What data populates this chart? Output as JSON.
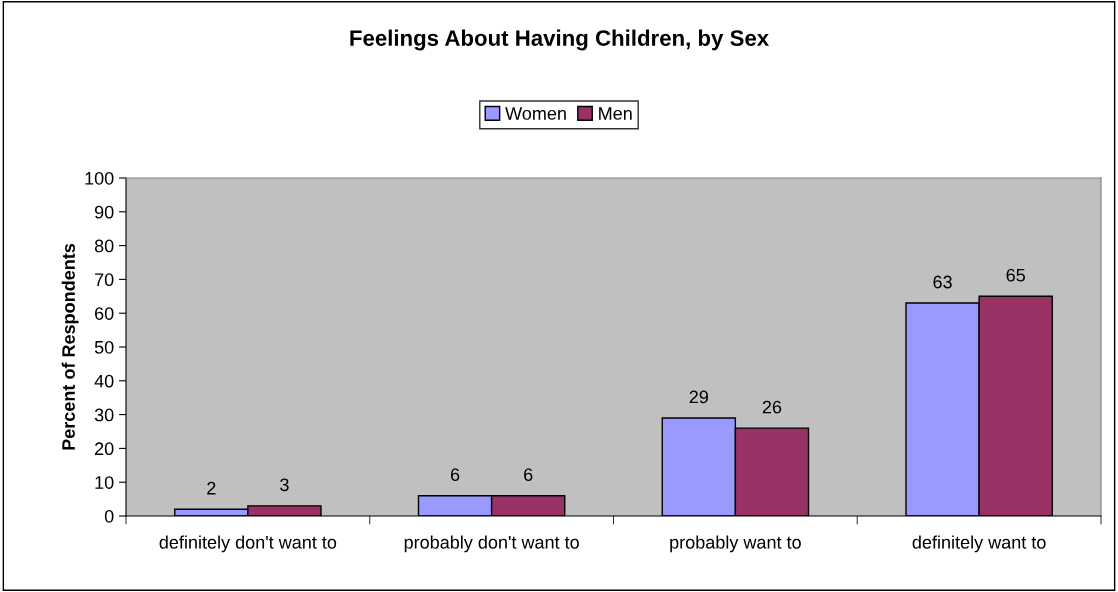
{
  "chart_data": {
    "type": "bar",
    "title": "Feelings About Having Children, by Sex",
    "ylabel": "Percent of Respondents",
    "categories": [
      "definitely don't want to",
      "probably don't want to",
      "probably want to",
      "definitely want to"
    ],
    "series": [
      {
        "name": "Women",
        "color": "#9999ff",
        "values": [
          2,
          6,
          29,
          63
        ]
      },
      {
        "name": "Men",
        "color": "#993366",
        "values": [
          3,
          6,
          26,
          65
        ]
      }
    ],
    "ylim": [
      0,
      100
    ],
    "yticks": [
      0,
      10,
      20,
      30,
      40,
      50,
      60,
      70,
      80,
      90,
      100
    ],
    "grid": false,
    "legend": "top",
    "data_labels": true
  }
}
